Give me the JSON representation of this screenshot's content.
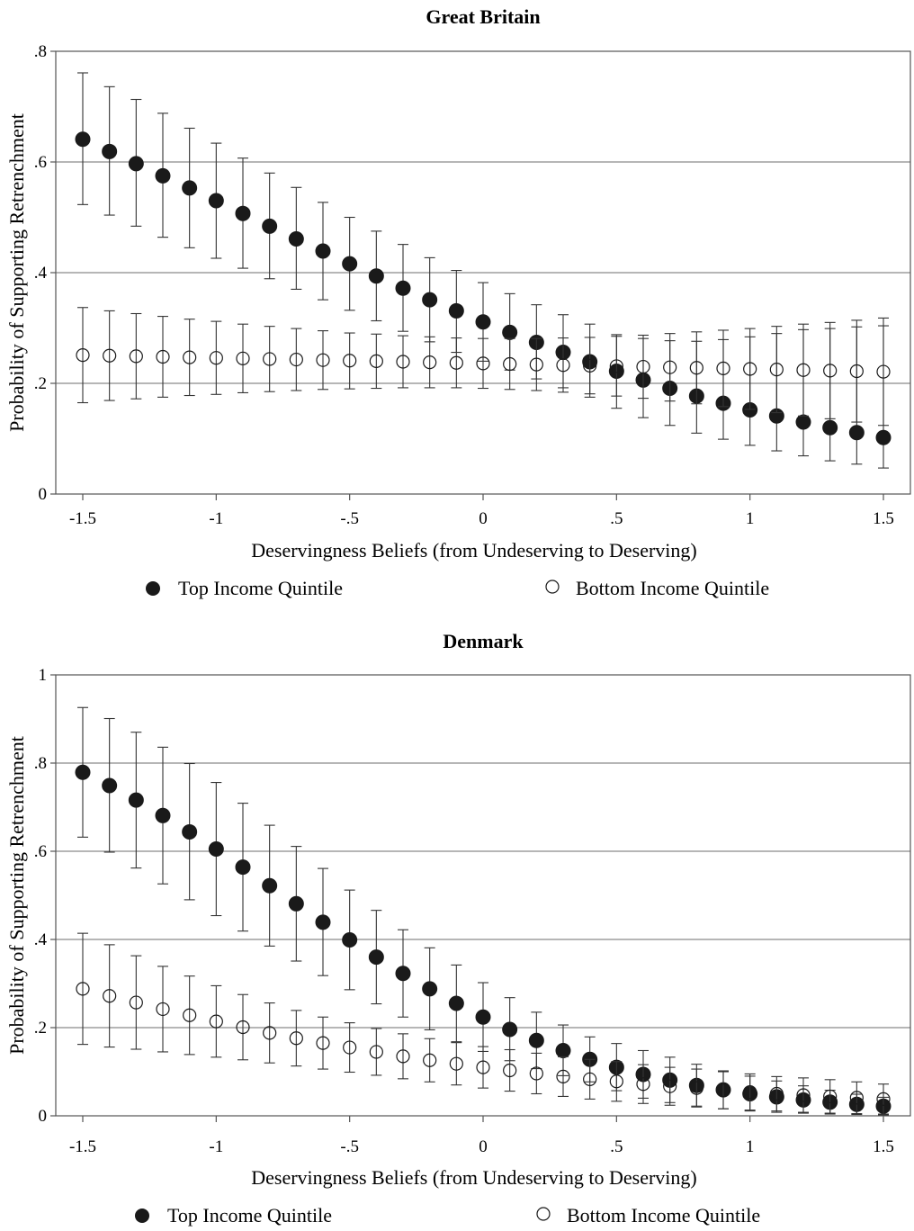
{
  "chart_data": [
    {
      "type": "scatter",
      "title": "Great Britain",
      "xlabel": "Deservingness Beliefs (from Undeserving to Deserving)",
      "ylabel": "Probability of Supporting Retrenchment",
      "xlim": [
        -1.5,
        1.5
      ],
      "ylim": [
        0,
        0.8
      ],
      "xticks": [
        -1.5,
        -1,
        -0.5,
        0,
        0.5,
        1,
        1.5
      ],
      "xtick_labels": [
        "-1.5",
        "-1",
        "-.5",
        "0",
        ".5",
        "1",
        "1.5"
      ],
      "yticks": [
        0,
        0.2,
        0.4,
        0.6,
        0.8
      ],
      "ytick_labels": [
        "0",
        ".2",
        ".4",
        ".6",
        ".8"
      ],
      "grid": "horizontal",
      "legend_placement": "bottom",
      "x": [
        -1.5,
        -1.4,
        -1.3,
        -1.2,
        -1.1,
        -1.0,
        -0.9,
        -0.8,
        -0.7,
        -0.6,
        -0.5,
        -0.4,
        -0.3,
        -0.2,
        -0.1,
        0.0,
        0.1,
        0.2,
        0.3,
        0.4,
        0.5,
        0.6,
        0.7,
        0.8,
        0.9,
        1.0,
        1.1,
        1.2,
        1.3,
        1.4,
        1.5
      ],
      "series": [
        {
          "name": "Top Income Quintile",
          "marker": "filled-circle",
          "values": [
            0.641,
            0.619,
            0.597,
            0.575,
            0.553,
            0.53,
            0.507,
            0.484,
            0.461,
            0.439,
            0.416,
            0.394,
            0.372,
            0.351,
            0.331,
            0.311,
            0.292,
            0.274,
            0.256,
            0.239,
            0.222,
            0.206,
            0.191,
            0.177,
            0.164,
            0.152,
            0.141,
            0.13,
            0.12,
            0.111,
            0.102
          ],
          "lower": [
            0.523,
            0.504,
            0.484,
            0.464,
            0.445,
            0.426,
            0.408,
            0.389,
            0.37,
            0.351,
            0.332,
            0.313,
            0.294,
            0.275,
            0.256,
            0.24,
            0.224,
            0.208,
            0.192,
            0.175,
            0.155,
            0.138,
            0.124,
            0.11,
            0.099,
            0.088,
            0.078,
            0.069,
            0.06,
            0.054,
            0.047
          ],
          "upper": [
            0.761,
            0.736,
            0.713,
            0.688,
            0.661,
            0.634,
            0.607,
            0.58,
            0.554,
            0.527,
            0.5,
            0.475,
            0.451,
            0.427,
            0.404,
            0.382,
            0.362,
            0.342,
            0.324,
            0.307,
            0.288,
            0.281,
            0.277,
            0.276,
            0.279,
            0.284,
            0.29,
            0.297,
            0.299,
            0.302,
            0.304
          ]
        },
        {
          "name": "Bottom Income Quintile",
          "marker": "hollow-circle",
          "values": [
            0.251,
            0.25,
            0.249,
            0.248,
            0.247,
            0.246,
            0.245,
            0.244,
            0.243,
            0.242,
            0.241,
            0.24,
            0.239,
            0.238,
            0.237,
            0.236,
            0.235,
            0.234,
            0.233,
            0.232,
            0.231,
            0.23,
            0.229,
            0.228,
            0.227,
            0.226,
            0.225,
            0.224,
            0.223,
            0.222,
            0.221
          ],
          "lower": [
            0.165,
            0.169,
            0.172,
            0.175,
            0.178,
            0.18,
            0.183,
            0.185,
            0.187,
            0.189,
            0.19,
            0.191,
            0.192,
            0.192,
            0.192,
            0.191,
            0.189,
            0.187,
            0.184,
            0.181,
            0.177,
            0.173,
            0.168,
            0.163,
            0.158,
            0.153,
            0.147,
            0.141,
            0.136,
            0.13,
            0.124
          ],
          "upper": [
            0.337,
            0.331,
            0.326,
            0.321,
            0.316,
            0.312,
            0.307,
            0.303,
            0.299,
            0.295,
            0.291,
            0.289,
            0.286,
            0.284,
            0.282,
            0.281,
            0.281,
            0.281,
            0.282,
            0.283,
            0.285,
            0.287,
            0.29,
            0.293,
            0.296,
            0.299,
            0.303,
            0.307,
            0.31,
            0.314,
            0.318
          ]
        }
      ]
    },
    {
      "type": "scatter",
      "title": "Denmark",
      "xlabel": "Deservingness Beliefs (from Undeserving to Deserving)",
      "ylabel": "Probability of Supporting Retrenchment",
      "xlim": [
        -1.5,
        1.5
      ],
      "ylim": [
        0,
        1
      ],
      "xticks": [
        -1.5,
        -1,
        -0.5,
        0,
        0.5,
        1,
        1.5
      ],
      "xtick_labels": [
        "-1.5",
        "-1",
        "-.5",
        "0",
        ".5",
        "1",
        "1.5"
      ],
      "yticks": [
        0,
        0.2,
        0.4,
        0.6,
        0.8,
        1
      ],
      "ytick_labels": [
        "0",
        ".2",
        ".4",
        ".6",
        ".8",
        "1"
      ],
      "grid": "horizontal",
      "legend_placement": "bottom",
      "x": [
        -1.5,
        -1.4,
        -1.3,
        -1.2,
        -1.1,
        -1.0,
        -0.9,
        -0.8,
        -0.7,
        -0.6,
        -0.5,
        -0.4,
        -0.3,
        -0.2,
        -0.1,
        0.0,
        0.1,
        0.2,
        0.3,
        0.4,
        0.5,
        0.6,
        0.7,
        0.8,
        0.9,
        1.0,
        1.1,
        1.2,
        1.3,
        1.4,
        1.5
      ],
      "series": [
        {
          "name": "Top Income Quintile",
          "marker": "filled-circle",
          "values": [
            0.779,
            0.749,
            0.716,
            0.681,
            0.644,
            0.605,
            0.564,
            0.522,
            0.481,
            0.439,
            0.399,
            0.36,
            0.323,
            0.288,
            0.255,
            0.224,
            0.196,
            0.171,
            0.148,
            0.128,
            0.11,
            0.094,
            0.081,
            0.069,
            0.059,
            0.05,
            0.043,
            0.036,
            0.031,
            0.026,
            0.022
          ],
          "lower": [
            0.632,
            0.598,
            0.562,
            0.526,
            0.49,
            0.454,
            0.419,
            0.385,
            0.351,
            0.318,
            0.286,
            0.254,
            0.224,
            0.195,
            0.168,
            0.146,
            0.125,
            0.107,
            0.091,
            0.077,
            0.057,
            0.04,
            0.03,
            0.022,
            0.016,
            0.011,
            0.008,
            0.006,
            0.004,
            0.003,
            0.002
          ],
          "upper": [
            0.926,
            0.901,
            0.87,
            0.836,
            0.799,
            0.756,
            0.709,
            0.659,
            0.611,
            0.561,
            0.512,
            0.466,
            0.422,
            0.381,
            0.342,
            0.302,
            0.268,
            0.235,
            0.206,
            0.179,
            0.164,
            0.148,
            0.133,
            0.117,
            0.102,
            0.09,
            0.079,
            0.068,
            0.058,
            0.049,
            0.042
          ]
        },
        {
          "name": "Bottom Income Quintile",
          "marker": "hollow-circle",
          "values": [
            0.288,
            0.272,
            0.257,
            0.242,
            0.228,
            0.214,
            0.201,
            0.188,
            0.176,
            0.165,
            0.155,
            0.145,
            0.135,
            0.126,
            0.118,
            0.11,
            0.103,
            0.096,
            0.089,
            0.083,
            0.078,
            0.072,
            0.067,
            0.063,
            0.058,
            0.054,
            0.05,
            0.047,
            0.044,
            0.041,
            0.038
          ],
          "lower": [
            0.162,
            0.156,
            0.151,
            0.145,
            0.139,
            0.133,
            0.127,
            0.12,
            0.113,
            0.106,
            0.099,
            0.092,
            0.084,
            0.077,
            0.07,
            0.063,
            0.056,
            0.05,
            0.044,
            0.038,
            0.033,
            0.028,
            0.024,
            0.02,
            0.016,
            0.013,
            0.011,
            0.008,
            0.006,
            0.005,
            0.004
          ],
          "upper": [
            0.414,
            0.388,
            0.363,
            0.339,
            0.317,
            0.295,
            0.275,
            0.256,
            0.239,
            0.224,
            0.211,
            0.198,
            0.186,
            0.175,
            0.166,
            0.157,
            0.15,
            0.142,
            0.134,
            0.128,
            0.123,
            0.116,
            0.11,
            0.106,
            0.1,
            0.095,
            0.089,
            0.086,
            0.082,
            0.077,
            0.072
          ]
        }
      ]
    }
  ]
}
